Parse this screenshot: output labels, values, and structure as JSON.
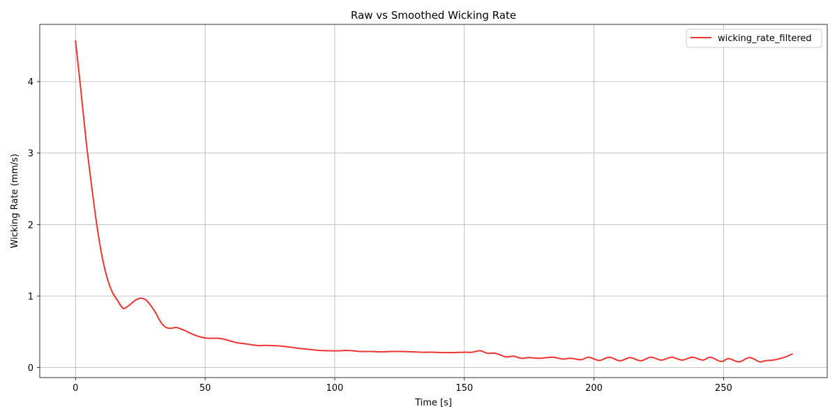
{
  "chart_data": {
    "type": "line",
    "title": "Raw vs Smoothed Wicking Rate",
    "xlabel": "Time [s]",
    "ylabel": "Wicking Rate (mm/s)",
    "xlim": [
      -13.8,
      290
    ],
    "ylim": [
      -0.14,
      4.8
    ],
    "grid": true,
    "legend_position": "top-right",
    "x_ticks": [
      0,
      50,
      100,
      150,
      200,
      250
    ],
    "y_ticks": [
      0,
      1,
      2,
      3,
      4
    ],
    "series": [
      {
        "name": "wicking_rate_filtered",
        "color": "#ee3333",
        "points": [
          [
            0,
            4.57
          ],
          [
            2,
            3.9
          ],
          [
            4,
            3.2
          ],
          [
            6,
            2.6
          ],
          [
            8,
            2.05
          ],
          [
            10,
            1.6
          ],
          [
            12,
            1.28
          ],
          [
            14,
            1.07
          ],
          [
            16,
            0.95
          ],
          [
            18,
            0.84
          ],
          [
            19,
            0.83
          ],
          [
            21,
            0.88
          ],
          [
            23,
            0.94
          ],
          [
            25,
            0.97
          ],
          [
            27,
            0.95
          ],
          [
            29,
            0.87
          ],
          [
            31,
            0.76
          ],
          [
            33,
            0.63
          ],
          [
            35,
            0.56
          ],
          [
            37,
            0.55
          ],
          [
            39,
            0.56
          ],
          [
            42,
            0.52
          ],
          [
            45,
            0.47
          ],
          [
            48,
            0.43
          ],
          [
            51,
            0.41
          ],
          [
            55,
            0.41
          ],
          [
            58,
            0.39
          ],
          [
            62,
            0.35
          ],
          [
            66,
            0.33
          ],
          [
            70,
            0.31
          ],
          [
            74,
            0.31
          ],
          [
            78,
            0.305
          ],
          [
            82,
            0.29
          ],
          [
            86,
            0.27
          ],
          [
            90,
            0.255
          ],
          [
            94,
            0.24
          ],
          [
            98,
            0.235
          ],
          [
            102,
            0.235
          ],
          [
            104,
            0.24
          ],
          [
            107,
            0.235
          ],
          [
            110,
            0.225
          ],
          [
            114,
            0.225
          ],
          [
            118,
            0.22
          ],
          [
            122,
            0.225
          ],
          [
            126,
            0.225
          ],
          [
            130,
            0.22
          ],
          [
            134,
            0.215
          ],
          [
            138,
            0.215
          ],
          [
            142,
            0.21
          ],
          [
            146,
            0.21
          ],
          [
            150,
            0.215
          ],
          [
            153,
            0.215
          ],
          [
            156,
            0.235
          ],
          [
            159,
            0.2
          ],
          [
            162,
            0.2
          ],
          [
            166,
            0.15
          ],
          [
            169,
            0.16
          ],
          [
            172,
            0.13
          ],
          [
            175,
            0.14
          ],
          [
            179,
            0.13
          ],
          [
            184,
            0.145
          ],
          [
            188,
            0.12
          ],
          [
            191,
            0.13
          ],
          [
            195,
            0.11
          ],
          [
            198,
            0.145
          ],
          [
            202,
            0.1
          ],
          [
            206,
            0.145
          ],
          [
            210,
            0.095
          ],
          [
            214,
            0.14
          ],
          [
            218,
            0.095
          ],
          [
            222,
            0.145
          ],
          [
            226,
            0.105
          ],
          [
            230,
            0.145
          ],
          [
            234,
            0.105
          ],
          [
            238,
            0.145
          ],
          [
            242,
            0.105
          ],
          [
            245,
            0.145
          ],
          [
            249,
            0.085
          ],
          [
            252,
            0.125
          ],
          [
            256,
            0.08
          ],
          [
            260,
            0.14
          ],
          [
            264,
            0.08
          ],
          [
            266,
            0.095
          ],
          [
            270,
            0.11
          ],
          [
            274,
            0.15
          ],
          [
            276.5,
            0.19
          ]
        ]
      }
    ]
  }
}
